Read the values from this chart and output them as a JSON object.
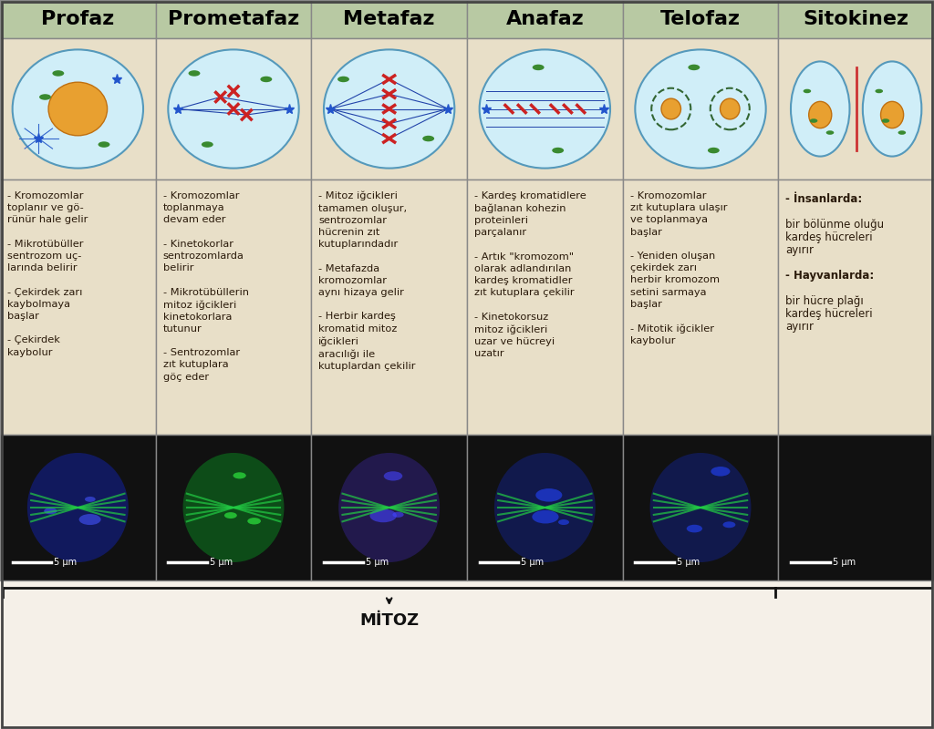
{
  "title_bg_color": "#b8c9a3",
  "cell_bg_color": "#e8dfc8",
  "header_text_color": "#000000",
  "body_text_color": "#2a1a0a",
  "border_color": "#888888",
  "fig_bg_color": "#f5f0e8",
  "mitoz_bracket_color": "#111111",
  "columns": [
    "Profaz",
    "Prometafaz",
    "Metafaz",
    "Anafaz",
    "Telofaz",
    "Sitokinez"
  ],
  "descriptions": [
    "- Kromozomlar\ntoplanır ve gö-\nrünür hale gelir\n\n- Mikrotübüller\nsentrozom uç-\nlarında belirir\n\n- Çekirdek zarı\nkaybolmaya\nbaşlar\n\n- Çekirdek\nkaybolur",
    "- Kromozomlar\ntoplanmaya\ndevam eder\n\n- Kinetokorlar\nsentrozomlarda\nbelirir\n\n- Mikrotübüllerin\nmitoz iğcikleri\nkinetokorlara\ntutunur\n\n- Sentrozomlar\nzıt kutuplara\ngöç eder",
    "- Mitoz iğcikleri\ntamamen oluşur,\nsentrozomlar\nhücrenin zıt\nkutuplarındadır\n\n- Metafazda\nkromozomlar\naynı hizaya gelir\n\n- Herbir kardeş\nkromatid mitoz\niğcikleri\naracılığı ile\nkutuplardan çekilir",
    "- Kardeş kromatidlere\nbağlanan kohezin\nproteinleri\nparçalanır\n\n- Artık \"kromozom\"\nolarak adlandırılan\nkardeş kromatidler\nzıt kutuplara çekilir\n\n- Kinetokorsuz\nmitoz iğcikleri\nuzar ve hücreyi\nuzatır",
    "- Kromozomlar\nzıt kutuplara ulaşır\nve toplanmaya\nbaşlar\n\n- Yeniden oluşan\nçekirdek zarı\nherbir kromozom\nsetini sarmaya\nbaşlar\n\n- Mitotik iğcikler\nkaybolur",
    "- İnsanlarda:\nbir bölünme oluğu\nkardeş hücreleri\nayırır\n\n- Hayvanlarda:\nbir hücre plağı\nkardeş hücreleri\nayırır"
  ],
  "scale_bar_text": "5 μm",
  "mitoz_label": "MİTOZ"
}
